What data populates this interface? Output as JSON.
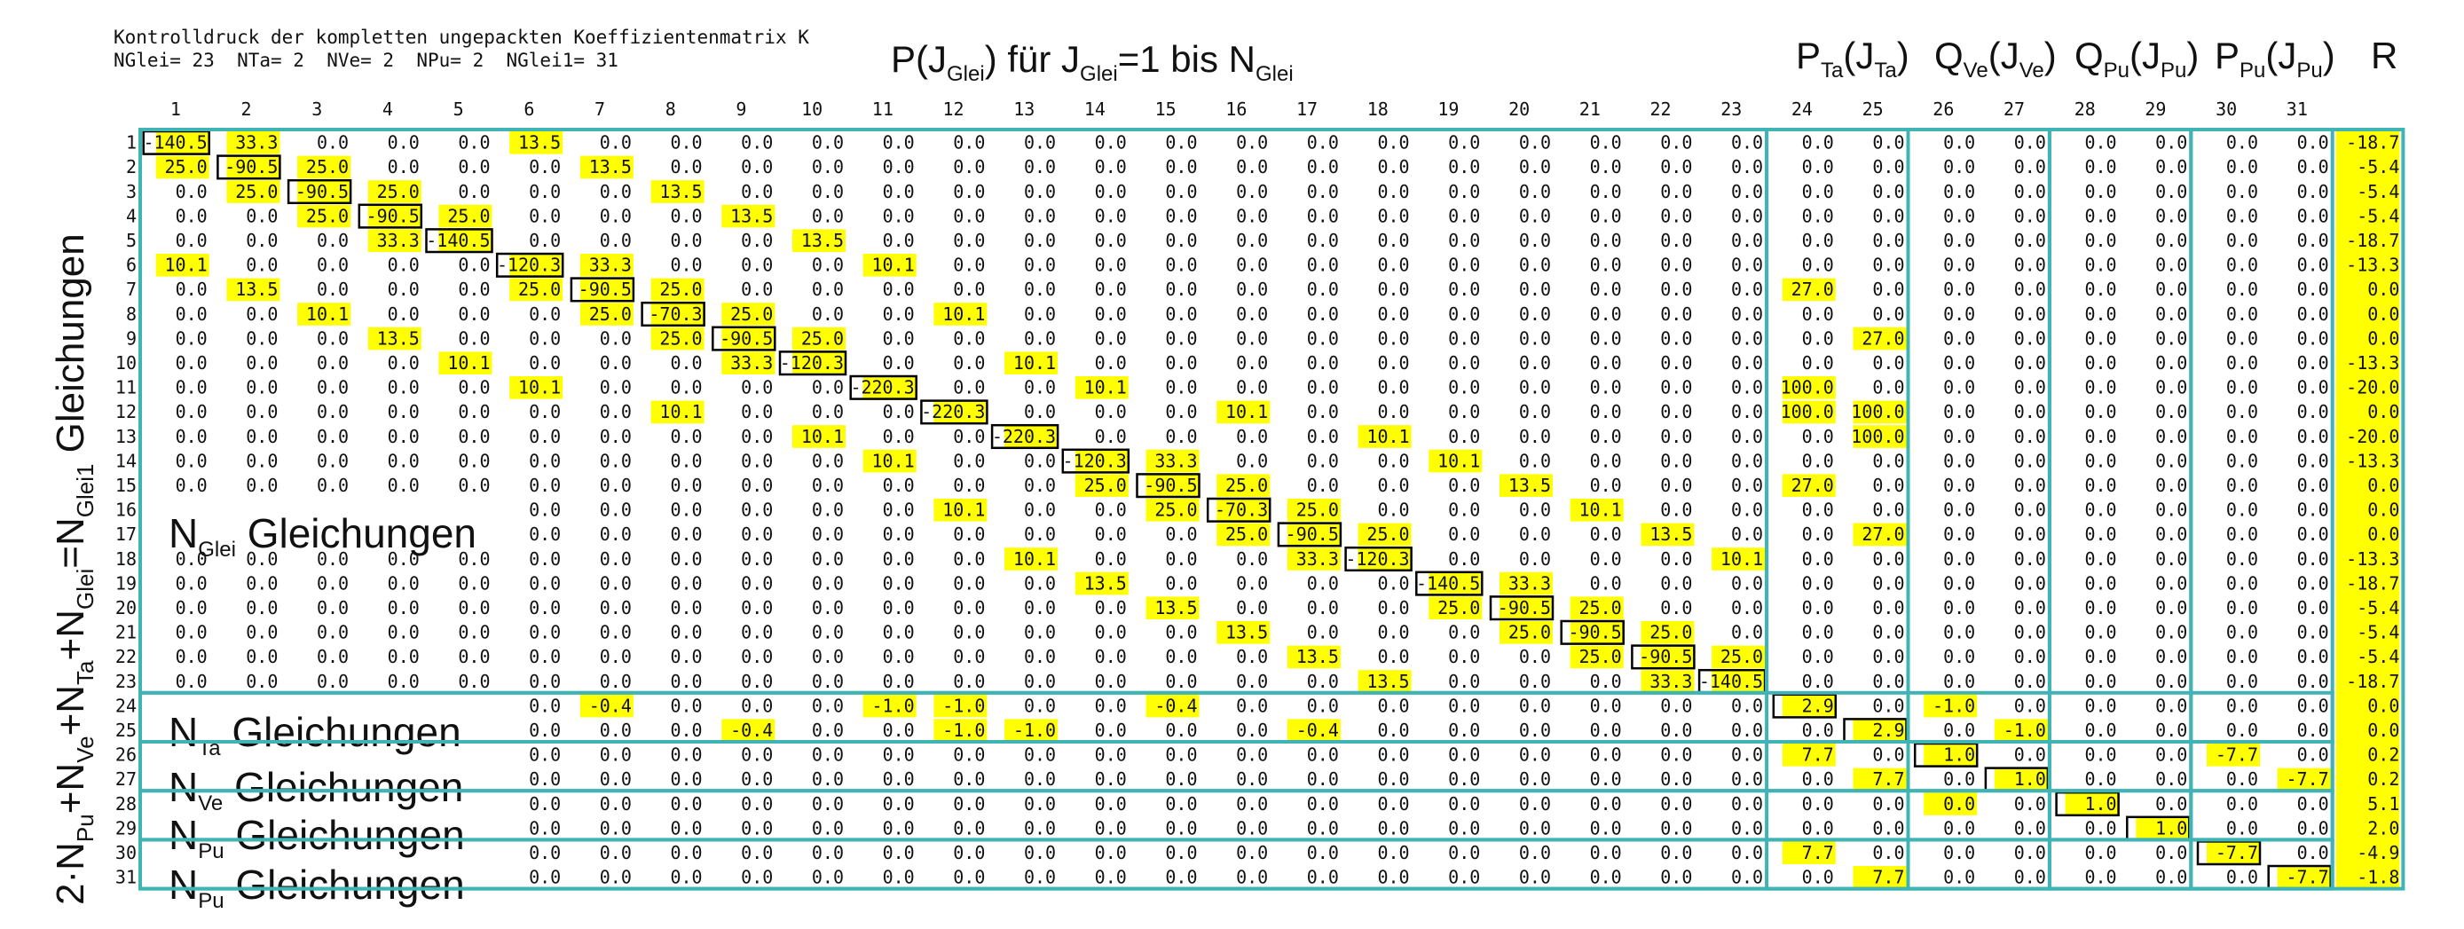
{
  "header": {
    "line1": "Kontrolldruck der kompletten ungepackten Koeffizientenmatrix K",
    "line2": "NGlei= 23  NTa= 2  NVe= 2  NPu= 2  NGlei1= 31"
  },
  "titles": {
    "p": {
      "base": "P(J",
      "sub1": "Glei",
      "mid": ") für J",
      "sub2": "Glei",
      "tail": "=1 bis N",
      "sub3": "Glei"
    },
    "pta": {
      "base": "P",
      "sub1": "Ta",
      "mid": "(J",
      "sub2": "Ta",
      "tail": ")"
    },
    "qve": {
      "base": "Q",
      "sub1": "Ve",
      "mid": "(J",
      "sub2": "Ve",
      "tail": ")"
    },
    "qpu": {
      "base": "Q",
      "sub1": "Pu",
      "mid": "(J",
      "sub2": "Pu",
      "tail": ")"
    },
    "ppu": {
      "base": "P",
      "sub1": "Pu",
      "mid": "(J",
      "sub2": "Pu",
      "tail": ")"
    },
    "r": "R"
  },
  "side_label": {
    "p1": "2·N",
    "s1": "Pu",
    "p2": "+N",
    "s2": "Ve",
    "p3": "+N",
    "s3": "Ta",
    "p4": "+N",
    "s4": "Glei",
    "p5": "=N",
    "s5": "Glei1",
    "p6": " Gleichungen"
  },
  "block_labels": [
    {
      "N": "N",
      "sub": "Glei",
      "text": "Gleichungen"
    },
    {
      "N": "N",
      "sub": "Ta",
      "text": " Gleichungen"
    },
    {
      "N": "N",
      "sub": "Ve",
      "text": " Gleichungen"
    },
    {
      "N": "N",
      "sub": "Pu",
      "text": " Gleichungen"
    },
    {
      "N": "N",
      "sub": "Pu",
      "text": " Gleichungen"
    }
  ],
  "column_numbers": [
    "1",
    "2",
    "3",
    "4",
    "5",
    "6",
    "7",
    "8",
    "9",
    "10",
    "11",
    "12",
    "13",
    "14",
    "15",
    "16",
    "17",
    "18",
    "19",
    "20",
    "21",
    "22",
    "23",
    "24",
    "25",
    "26",
    "27",
    "28",
    "29",
    "30",
    "31"
  ],
  "row_numbers": [
    "1",
    "2",
    "3",
    "4",
    "5",
    "6",
    "7",
    "8",
    "9",
    "10",
    "11",
    "12",
    "13",
    "14",
    "15",
    "16",
    "17",
    "18",
    "19",
    "20",
    "21",
    "22",
    "23",
    "24",
    "25",
    "26",
    "27",
    "28",
    "29",
    "30",
    "31"
  ],
  "colors": {
    "highlight": "#ffff00",
    "frame": "#40b4b4",
    "box": "#000000",
    "text": "#111111"
  },
  "nonzero_entries": [
    [
      1,
      1,
      "-140.5"
    ],
    [
      1,
      2,
      "33.3"
    ],
    [
      1,
      6,
      "13.5"
    ],
    [
      1,
      32,
      "-18.7"
    ],
    [
      2,
      1,
      "25.0"
    ],
    [
      2,
      2,
      "-90.5"
    ],
    [
      2,
      3,
      "25.0"
    ],
    [
      2,
      7,
      "13.5"
    ],
    [
      2,
      32,
      "-5.4"
    ],
    [
      3,
      2,
      "25.0"
    ],
    [
      3,
      3,
      "-90.5"
    ],
    [
      3,
      4,
      "25.0"
    ],
    [
      3,
      8,
      "13.5"
    ],
    [
      3,
      32,
      "-5.4"
    ],
    [
      4,
      3,
      "25.0"
    ],
    [
      4,
      4,
      "-90.5"
    ],
    [
      4,
      5,
      "25.0"
    ],
    [
      4,
      9,
      "13.5"
    ],
    [
      4,
      32,
      "-5.4"
    ],
    [
      5,
      4,
      "33.3"
    ],
    [
      5,
      5,
      "-140.5"
    ],
    [
      5,
      10,
      "13.5"
    ],
    [
      5,
      32,
      "-18.7"
    ],
    [
      6,
      1,
      "10.1"
    ],
    [
      6,
      6,
      "-120.3"
    ],
    [
      6,
      7,
      "33.3"
    ],
    [
      6,
      11,
      "10.1"
    ],
    [
      6,
      32,
      "-13.3"
    ],
    [
      7,
      2,
      "13.5"
    ],
    [
      7,
      6,
      "25.0"
    ],
    [
      7,
      7,
      "-90.5"
    ],
    [
      7,
      8,
      "25.0"
    ],
    [
      7,
      24,
      "27.0"
    ],
    [
      7,
      32,
      "0.0"
    ],
    [
      8,
      3,
      "10.1"
    ],
    [
      8,
      7,
      "25.0"
    ],
    [
      8,
      8,
      "-70.3"
    ],
    [
      8,
      9,
      "25.0"
    ],
    [
      8,
      12,
      "10.1"
    ],
    [
      8,
      32,
      "0.0"
    ],
    [
      9,
      4,
      "13.5"
    ],
    [
      9,
      8,
      "25.0"
    ],
    [
      9,
      9,
      "-90.5"
    ],
    [
      9,
      10,
      "25.0"
    ],
    [
      9,
      25,
      "27.0"
    ],
    [
      9,
      32,
      "0.0"
    ],
    [
      10,
      5,
      "10.1"
    ],
    [
      10,
      9,
      "33.3"
    ],
    [
      10,
      10,
      "-120.3"
    ],
    [
      10,
      13,
      "10.1"
    ],
    [
      10,
      32,
      "-13.3"
    ],
    [
      11,
      6,
      "10.1"
    ],
    [
      11,
      11,
      "-220.3"
    ],
    [
      11,
      14,
      "10.1"
    ],
    [
      11,
      24,
      "100.0"
    ],
    [
      11,
      32,
      "-20.0"
    ],
    [
      12,
      8,
      "10.1"
    ],
    [
      12,
      12,
      "-220.3"
    ],
    [
      12,
      16,
      "10.1"
    ],
    [
      12,
      24,
      "100.0"
    ],
    [
      12,
      25,
      "100.0"
    ],
    [
      12,
      32,
      "0.0"
    ],
    [
      13,
      10,
      "10.1"
    ],
    [
      13,
      13,
      "-220.3"
    ],
    [
      13,
      18,
      "10.1"
    ],
    [
      13,
      25,
      "100.0"
    ],
    [
      13,
      32,
      "-20.0"
    ],
    [
      14,
      11,
      "10.1"
    ],
    [
      14,
      14,
      "-120.3"
    ],
    [
      14,
      15,
      "33.3"
    ],
    [
      14,
      19,
      "10.1"
    ],
    [
      14,
      32,
      "-13.3"
    ],
    [
      15,
      14,
      "25.0"
    ],
    [
      15,
      15,
      "-90.5"
    ],
    [
      15,
      16,
      "25.0"
    ],
    [
      15,
      20,
      "13.5"
    ],
    [
      15,
      24,
      "27.0"
    ],
    [
      15,
      32,
      "0.0"
    ],
    [
      16,
      12,
      "10.1"
    ],
    [
      16,
      15,
      "25.0"
    ],
    [
      16,
      16,
      "-70.3"
    ],
    [
      16,
      17,
      "25.0"
    ],
    [
      16,
      21,
      "10.1"
    ],
    [
      16,
      32,
      "0.0"
    ],
    [
      17,
      16,
      "25.0"
    ],
    [
      17,
      17,
      "-90.5"
    ],
    [
      17,
      18,
      "25.0"
    ],
    [
      17,
      22,
      "13.5"
    ],
    [
      17,
      25,
      "27.0"
    ],
    [
      17,
      32,
      "0.0"
    ],
    [
      18,
      13,
      "10.1"
    ],
    [
      18,
      17,
      "33.3"
    ],
    [
      18,
      18,
      "-120.3"
    ],
    [
      18,
      23,
      "10.1"
    ],
    [
      18,
      32,
      "-13.3"
    ],
    [
      19,
      14,
      "13.5"
    ],
    [
      19,
      19,
      "-140.5"
    ],
    [
      19,
      20,
      "33.3"
    ],
    [
      19,
      32,
      "-18.7"
    ],
    [
      20,
      15,
      "13.5"
    ],
    [
      20,
      19,
      "25.0"
    ],
    [
      20,
      20,
      "-90.5"
    ],
    [
      20,
      21,
      "25.0"
    ],
    [
      20,
      32,
      "-5.4"
    ],
    [
      21,
      16,
      "13.5"
    ],
    [
      21,
      20,
      "25.0"
    ],
    [
      21,
      21,
      "-90.5"
    ],
    [
      21,
      22,
      "25.0"
    ],
    [
      21,
      32,
      "-5.4"
    ],
    [
      22,
      17,
      "13.5"
    ],
    [
      22,
      21,
      "25.0"
    ],
    [
      22,
      22,
      "-90.5"
    ],
    [
      22,
      23,
      "25.0"
    ],
    [
      22,
      32,
      "-5.4"
    ],
    [
      23,
      18,
      "13.5"
    ],
    [
      23,
      22,
      "33.3"
    ],
    [
      23,
      23,
      "-140.5"
    ],
    [
      23,
      32,
      "-18.7"
    ],
    [
      24,
      7,
      "-0.4"
    ],
    [
      24,
      11,
      "-1.0"
    ],
    [
      24,
      12,
      "-1.0"
    ],
    [
      24,
      15,
      "-0.4"
    ],
    [
      24,
      24,
      "2.9"
    ],
    [
      24,
      26,
      "-1.0"
    ],
    [
      24,
      32,
      "0.0"
    ],
    [
      25,
      9,
      "-0.4"
    ],
    [
      25,
      12,
      "-1.0"
    ],
    [
      25,
      13,
      "-1.0"
    ],
    [
      25,
      17,
      "-0.4"
    ],
    [
      25,
      25,
      "2.9"
    ],
    [
      25,
      27,
      "-1.0"
    ],
    [
      25,
      32,
      "0.0"
    ],
    [
      26,
      24,
      "7.7"
    ],
    [
      26,
      26,
      "1.0"
    ],
    [
      26,
      30,
      "-7.7"
    ],
    [
      26,
      32,
      "0.2"
    ],
    [
      27,
      25,
      "7.7"
    ],
    [
      27,
      27,
      "1.0"
    ],
    [
      27,
      31,
      "-7.7"
    ],
    [
      27,
      32,
      "0.2"
    ],
    [
      28,
      26,
      "0.0"
    ],
    [
      28,
      28,
      "1.0"
    ],
    [
      28,
      32,
      "5.1"
    ],
    [
      29,
      29,
      "1.0"
    ],
    [
      29,
      32,
      "2.0"
    ],
    [
      30,
      24,
      "7.7"
    ],
    [
      30,
      30,
      "-7.7"
    ],
    [
      30,
      32,
      "-4.9"
    ],
    [
      31,
      25,
      "7.7"
    ],
    [
      31,
      31,
      "-7.7"
    ],
    [
      31,
      32,
      "-1.8"
    ]
  ]
}
